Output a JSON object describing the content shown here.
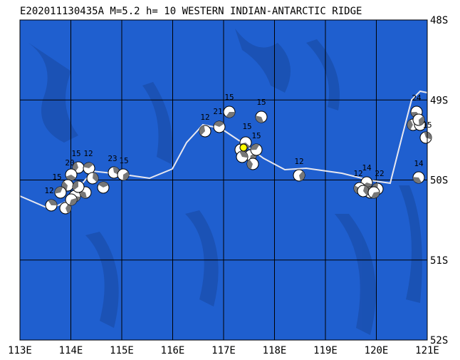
{
  "title": "E202011130435A  M=5.2  h= 10  WESTERN INDIAN-ANTARCTIC RIDGE",
  "x_labels": [
    "113E",
    "114E",
    "115E",
    "116E",
    "117E",
    "118E",
    "119E",
    "120E",
    "121E"
  ],
  "y_labels": [
    "48S",
    "49S",
    "50S",
    "51S",
    "52S"
  ],
  "events": [
    {
      "label": "15"
    },
    {
      "label": "15"
    },
    {
      "label": "12"
    },
    {
      "label": "21"
    },
    {
      "label": "15"
    },
    {
      "label": "15"
    },
    {
      "label": "12"
    },
    {
      "label": "14"
    },
    {
      "label": "12"
    },
    {
      "label": "22"
    },
    {
      "label": "14"
    },
    {
      "label": "15"
    },
    {
      "label": "12"
    },
    {
      "label": "23"
    },
    {
      "label": "15"
    },
    {
      "label": "20"
    },
    {
      "label": "15"
    },
    {
      "label": "12"
    },
    {
      "label": "24"
    },
    {
      "label": "15"
    }
  ]
}
